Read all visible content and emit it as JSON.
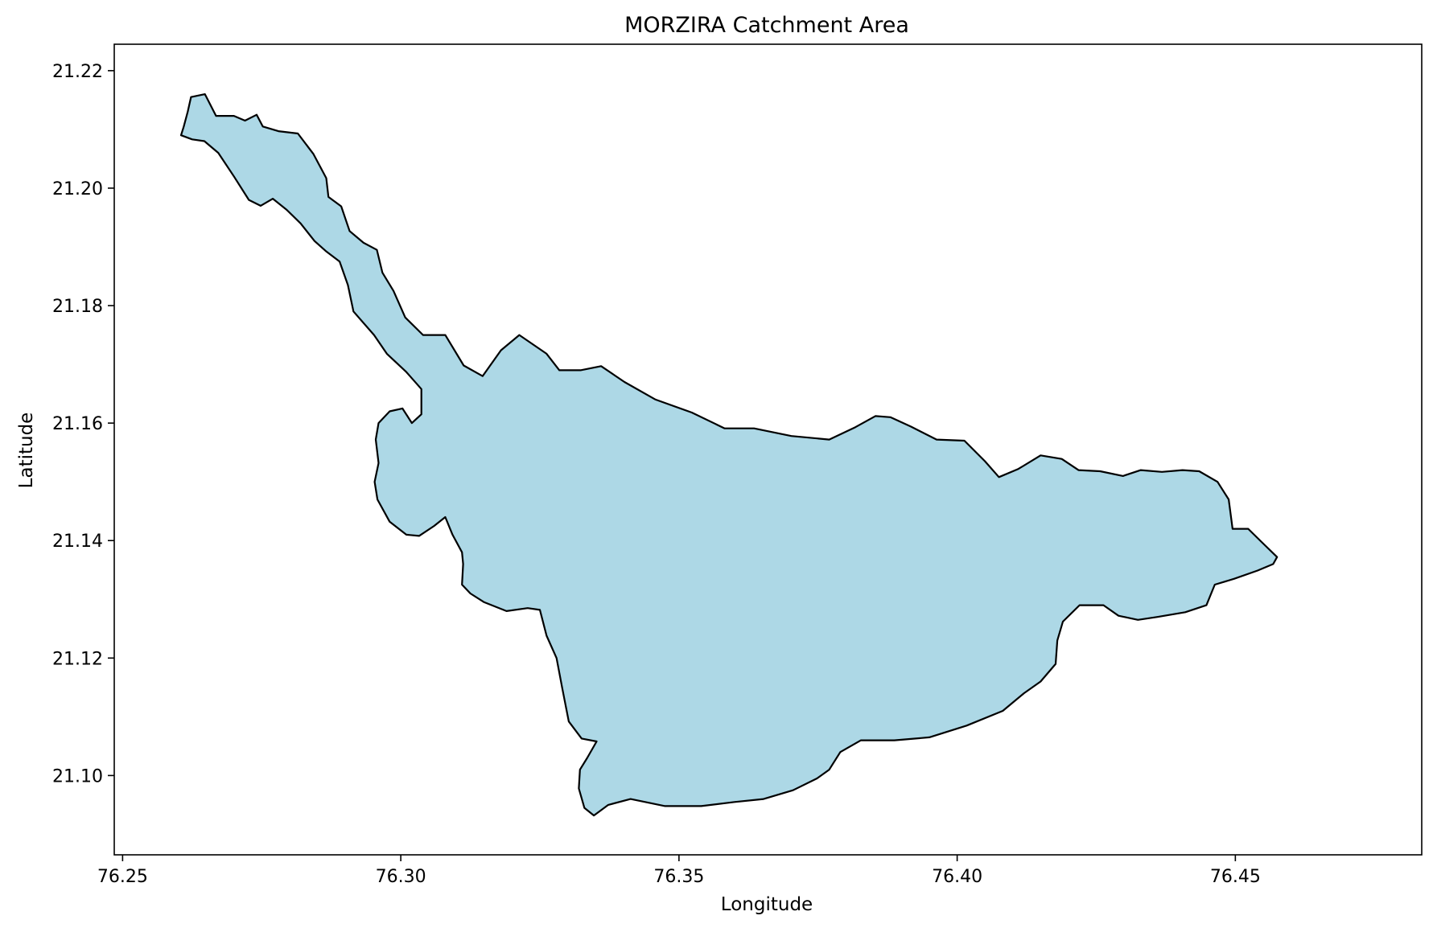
{
  "chart_data": {
    "type": "map",
    "title": "MORZIRA Catchment Area",
    "xlabel": "Longitude",
    "ylabel": "Latitude",
    "xlim": [
      76.2485,
      76.4835
    ],
    "ylim": [
      21.0865,
      21.2245
    ],
    "x_ticks": [
      "76.25",
      "76.30",
      "76.35",
      "76.40",
      "76.45"
    ],
    "y_ticks": [
      "21.10",
      "21.12",
      "21.14",
      "21.16",
      "21.18",
      "21.20",
      "21.22"
    ],
    "grid": false,
    "colors": {
      "fill": "#add8e6",
      "edge": "#000000"
    },
    "polygon": [
      [
        76.2623,
        21.2155
      ],
      [
        76.2648,
        21.216
      ],
      [
        76.2668,
        21.2123
      ],
      [
        76.27,
        21.2123
      ],
      [
        76.272,
        21.2115
      ],
      [
        76.2741,
        21.2125
      ],
      [
        76.2752,
        21.2105
      ],
      [
        76.278,
        21.2097
      ],
      [
        76.2815,
        21.2093
      ],
      [
        76.2843,
        21.2058
      ],
      [
        76.2866,
        21.2017
      ],
      [
        76.287,
        21.1985
      ],
      [
        76.2893,
        21.1969
      ],
      [
        76.2908,
        21.1927
      ],
      [
        76.2933,
        21.1907
      ],
      [
        76.2957,
        21.1895
      ],
      [
        76.2967,
        21.1856
      ],
      [
        76.2987,
        21.1825
      ],
      [
        76.3008,
        21.178
      ],
      [
        76.304,
        21.175
      ],
      [
        76.308,
        21.175
      ],
      [
        76.3113,
        21.1698
      ],
      [
        76.3147,
        21.168
      ],
      [
        76.318,
        21.1724
      ],
      [
        76.3213,
        21.175
      ],
      [
        76.3262,
        21.1718
      ],
      [
        76.3285,
        21.169
      ],
      [
        76.3323,
        21.169
      ],
      [
        76.336,
        21.1697
      ],
      [
        76.3402,
        21.167
      ],
      [
        76.3458,
        21.164
      ],
      [
        76.3523,
        21.1618
      ],
      [
        76.3582,
        21.1591
      ],
      [
        76.3635,
        21.1591
      ],
      [
        76.3702,
        21.1578
      ],
      [
        76.377,
        21.1572
      ],
      [
        76.3817,
        21.1593
      ],
      [
        76.3853,
        21.1612
      ],
      [
        76.388,
        21.161
      ],
      [
        76.3917,
        21.1594
      ],
      [
        76.3963,
        21.1572
      ],
      [
        76.4013,
        21.157
      ],
      [
        76.405,
        21.1535
      ],
      [
        76.4075,
        21.1508
      ],
      [
        76.411,
        21.1522
      ],
      [
        76.415,
        21.1545
      ],
      [
        76.4188,
        21.1539
      ],
      [
        76.4218,
        21.152
      ],
      [
        76.4257,
        21.1518
      ],
      [
        76.4298,
        21.151
      ],
      [
        76.433,
        21.152
      ],
      [
        76.4368,
        21.1517
      ],
      [
        76.4405,
        21.152
      ],
      [
        76.4435,
        21.1518
      ],
      [
        76.4468,
        21.15
      ],
      [
        76.4488,
        21.147
      ],
      [
        76.4495,
        21.142
      ],
      [
        76.4523,
        21.142
      ],
      [
        76.455,
        21.1395
      ],
      [
        76.4575,
        21.1372
      ],
      [
        76.4568,
        21.136
      ],
      [
        76.454,
        21.1349
      ],
      [
        76.4498,
        21.1335
      ],
      [
        76.4463,
        21.1325
      ],
      [
        76.4448,
        21.129
      ],
      [
        76.441,
        21.1278
      ],
      [
        76.436,
        21.127
      ],
      [
        76.4325,
        21.1265
      ],
      [
        76.429,
        21.1272
      ],
      [
        76.4263,
        21.129
      ],
      [
        76.422,
        21.129
      ],
      [
        76.419,
        21.1262
      ],
      [
        76.418,
        21.123
      ],
      [
        76.4177,
        21.119
      ],
      [
        76.415,
        21.116
      ],
      [
        76.412,
        21.114
      ],
      [
        76.4082,
        21.111
      ],
      [
        76.4017,
        21.1085
      ],
      [
        76.395,
        21.1065
      ],
      [
        76.3887,
        21.106
      ],
      [
        76.3827,
        21.106
      ],
      [
        76.379,
        21.104
      ],
      [
        76.377,
        21.101
      ],
      [
        76.3748,
        21.0995
      ],
      [
        76.3705,
        21.0975
      ],
      [
        76.3652,
        21.096
      ],
      [
        76.36,
        21.0955
      ],
      [
        76.354,
        21.0948
      ],
      [
        76.3475,
        21.0948
      ],
      [
        76.3413,
        21.096
      ],
      [
        76.3373,
        21.095
      ],
      [
        76.3347,
        21.0932
      ],
      [
        76.333,
        21.0945
      ],
      [
        76.332,
        21.0978
      ],
      [
        76.3322,
        21.101
      ],
      [
        76.3335,
        21.103
      ],
      [
        76.3352,
        21.1058
      ],
      [
        76.3325,
        21.1063
      ],
      [
        76.3302,
        21.1092
      ],
      [
        76.329,
        21.115
      ],
      [
        76.328,
        21.12
      ],
      [
        76.3262,
        21.1238
      ],
      [
        76.325,
        21.1282
      ],
      [
        76.3228,
        21.1285
      ],
      [
        76.319,
        21.128
      ],
      [
        76.315,
        21.1295
      ],
      [
        76.3125,
        21.131
      ],
      [
        76.311,
        21.1325
      ],
      [
        76.3112,
        21.136
      ],
      [
        76.311,
        21.138
      ],
      [
        76.3093,
        21.141
      ],
      [
        76.308,
        21.144
      ],
      [
        76.306,
        21.1425
      ],
      [
        76.3033,
        21.1408
      ],
      [
        76.301,
        21.141
      ],
      [
        76.298,
        21.1432
      ],
      [
        76.2958,
        21.147
      ],
      [
        76.2953,
        21.15
      ],
      [
        76.296,
        21.1532
      ],
      [
        76.2955,
        21.1572
      ],
      [
        76.296,
        21.16
      ],
      [
        76.298,
        21.162
      ],
      [
        76.3003,
        21.1625
      ],
      [
        76.302,
        21.16
      ],
      [
        76.3037,
        21.1615
      ],
      [
        76.3037,
        21.1658
      ],
      [
        76.301,
        21.1687
      ],
      [
        76.2975,
        21.1718
      ],
      [
        76.2952,
        21.175
      ],
      [
        76.2915,
        21.179
      ],
      [
        76.2905,
        21.1835
      ],
      [
        76.289,
        21.1875
      ],
      [
        76.2865,
        21.1893
      ],
      [
        76.2845,
        21.191
      ],
      [
        76.282,
        21.194
      ],
      [
        76.2795,
        21.1963
      ],
      [
        76.277,
        21.1982
      ],
      [
        76.2748,
        21.197
      ],
      [
        76.2727,
        21.198
      ],
      [
        76.27,
        21.202
      ],
      [
        76.2672,
        21.206
      ],
      [
        76.2647,
        21.208
      ],
      [
        76.2625,
        21.2083
      ],
      [
        76.2605,
        21.209
      ],
      [
        76.261,
        21.2105
      ],
      [
        76.2617,
        21.213
      ]
    ]
  }
}
